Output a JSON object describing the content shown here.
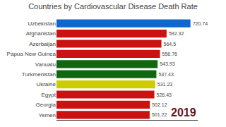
{
  "chart_data": {
    "type": "bar",
    "orientation": "horizontal",
    "title": "Countries by Cardiovascular Disease Death Rate",
    "categories": [
      "Yemen",
      "Georgia",
      "Egypt",
      "Ukraine",
      "Turkmenistan",
      "Vanuatu",
      "Papua New Guinea",
      "Azerbaijan",
      "Afghanistan",
      "Uzbekistan"
    ],
    "values": [
      501.22,
      502.12,
      526.43,
      531.23,
      537.43,
      543.93,
      556.76,
      564.5,
      592.32,
      720.74
    ],
    "colors": [
      "#cc1111",
      "#cc1111",
      "#cc1111",
      "#cccc00",
      "#116611",
      "#116611",
      "#cc1111",
      "#cc1111",
      "#cc1111",
      "#1166cc"
    ],
    "xlim": [
      0,
      760
    ],
    "data_labels": true,
    "tick_labels": "y",
    "grid": false,
    "annotations": [
      {
        "text": "2019"
      }
    ]
  }
}
